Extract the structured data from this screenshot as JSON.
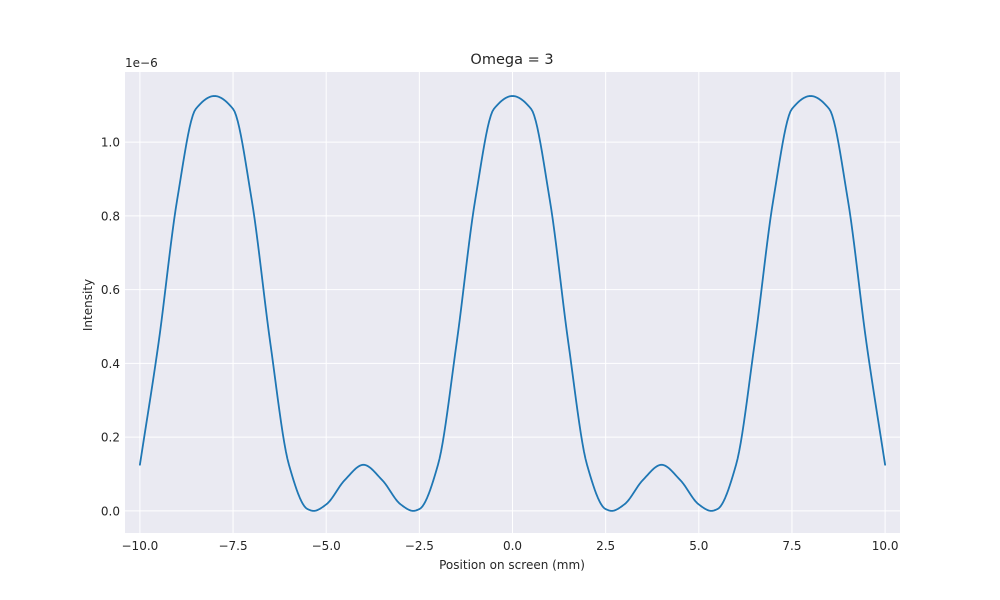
{
  "chart_data": {
    "type": "line",
    "title": "Omega = 3",
    "xlabel": "Position on screen (mm)",
    "ylabel": "Intensity",
    "y_offset_label": "1e−6",
    "y_scale_factor": 1e-06,
    "xlim": [
      -10.4,
      10.4
    ],
    "ylim": [
      -0.06,
      1.19
    ],
    "x_ticks": [
      -10,
      -7.5,
      -5,
      -2.5,
      0,
      2.5,
      5,
      7.5,
      10
    ],
    "x_tick_labels": [
      "−10.0",
      "−7.5",
      "−5.0",
      "−2.5",
      "0.0",
      "2.5",
      "5.0",
      "7.5",
      "10.0"
    ],
    "y_ticks": [
      0,
      0.2,
      0.4,
      0.6,
      0.8,
      1.0
    ],
    "y_tick_labels": [
      "0.0",
      "0.2",
      "0.4",
      "0.6",
      "0.8",
      "1.0"
    ],
    "grid": true,
    "style": "seaborn-darkgrid",
    "series": [
      {
        "color": "#1f77b4",
        "x": [
          -10,
          -9.5,
          -9,
          -8.5,
          -8,
          -7.5,
          -7,
          -6.5,
          -6,
          -5.5,
          -5.3333,
          -5,
          -4.5,
          -4,
          -3.5,
          -3,
          -2.6667,
          -2.5,
          -2,
          -1.5,
          -1,
          -0.5,
          0,
          0.5,
          1,
          1.5,
          2,
          2.5,
          2.6667,
          3,
          3.5,
          4,
          4.5,
          5,
          5.3333,
          5.5,
          6,
          6.5,
          7,
          7.5,
          8,
          8.5,
          9,
          9.5,
          10
        ],
        "y": [
          0.125,
          0.4549,
          0.8437,
          1.0899,
          1.125,
          1.0899,
          0.8437,
          0.4549,
          0.125,
          0.0048,
          0,
          0.0174,
          0.0838,
          0.125,
          0.0838,
          0.0174,
          0,
          0.0048,
          0.125,
          0.4549,
          0.8437,
          1.0899,
          1.125,
          1.0899,
          0.8437,
          0.4549,
          0.125,
          0.0048,
          0,
          0.0174,
          0.0838,
          0.125,
          0.0838,
          0.0174,
          0,
          0.0048,
          0.125,
          0.4549,
          0.8437,
          1.0899,
          1.125,
          1.0899,
          0.8437,
          0.4549,
          0.125
        ]
      }
    ]
  }
}
